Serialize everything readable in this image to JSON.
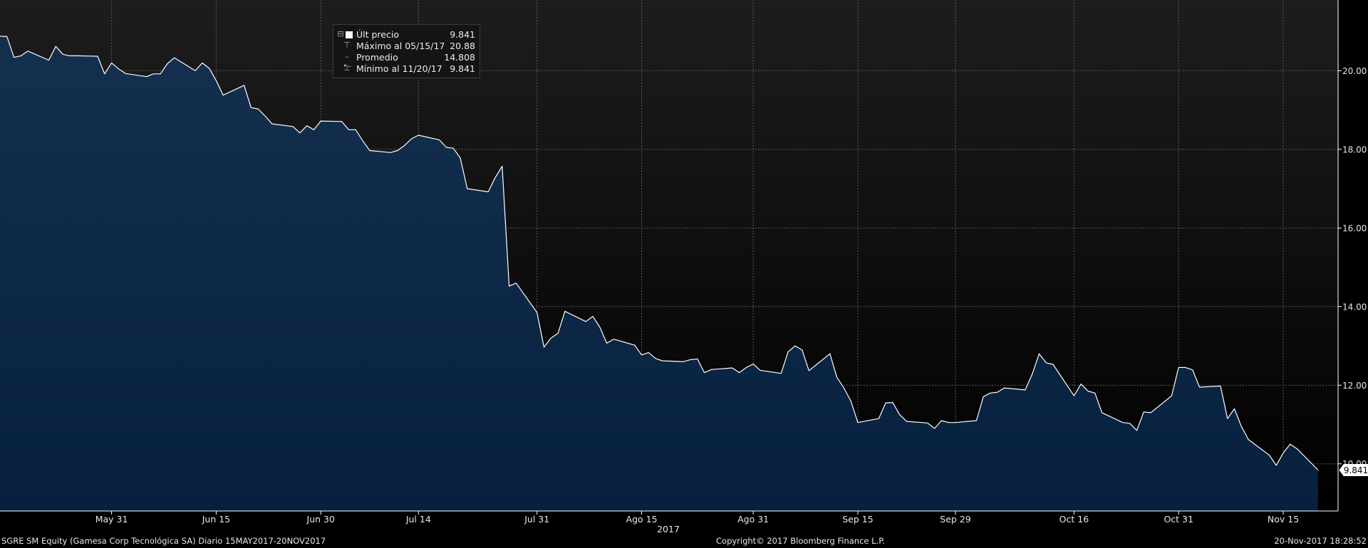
{
  "chart_data": {
    "type": "area",
    "title": "",
    "xlabel": "2017",
    "ylabel": "",
    "ylim": [
      8.8,
      21.8
    ],
    "grid": true,
    "legend_placement": "top-left",
    "y_ticks": [
      "10.00",
      "12.00",
      "14.00",
      "16.00",
      "18.00",
      "20.00"
    ],
    "x_ticks": [
      {
        "label": "May 31",
        "date": "2017-05-31"
      },
      {
        "label": "Jun 15",
        "date": "2017-06-15"
      },
      {
        "label": "Jun 30",
        "date": "2017-06-30"
      },
      {
        "label": "Jul 14",
        "date": "2017-07-14"
      },
      {
        "label": "Jul 31",
        "date": "2017-07-31"
      },
      {
        "label": "Ago 15",
        "date": "2017-08-15"
      },
      {
        "label": "Ago 31",
        "date": "2017-08-31"
      },
      {
        "label": "Sep 15",
        "date": "2017-09-15"
      },
      {
        "label": "Sep 29",
        "date": "2017-09-29"
      },
      {
        "label": "Oct 16",
        "date": "2017-10-16"
      },
      {
        "label": "Oct 31",
        "date": "2017-10-31"
      },
      {
        "label": "Nov 15",
        "date": "2017-11-15"
      }
    ],
    "x_range": [
      "2017-05-15",
      "2017-11-20"
    ],
    "series": [
      {
        "name": "Últ precio",
        "color": "#ffffff",
        "fill_top": "#15304f",
        "fill_bottom": "#06203e",
        "points": [
          [
            "2017-05-15",
            20.88
          ],
          [
            "2017-05-16",
            20.87
          ],
          [
            "2017-05-17",
            20.34
          ],
          [
            "2017-05-18",
            20.38
          ],
          [
            "2017-05-19",
            20.5
          ],
          [
            "2017-05-22",
            20.27
          ],
          [
            "2017-05-23",
            20.62
          ],
          [
            "2017-05-24",
            20.42
          ],
          [
            "2017-05-25",
            20.38
          ],
          [
            "2017-05-26",
            20.38
          ],
          [
            "2017-05-29",
            20.37
          ],
          [
            "2017-05-30",
            19.92
          ],
          [
            "2017-05-31",
            20.2
          ],
          [
            "2017-06-01",
            20.05
          ],
          [
            "2017-06-02",
            19.93
          ],
          [
            "2017-06-05",
            19.85
          ],
          [
            "2017-06-06",
            19.92
          ],
          [
            "2017-06-07",
            19.92
          ],
          [
            "2017-06-08",
            20.18
          ],
          [
            "2017-06-09",
            20.33
          ],
          [
            "2017-06-12",
            20.0
          ],
          [
            "2017-06-13",
            20.2
          ],
          [
            "2017-06-14",
            20.06
          ],
          [
            "2017-06-15",
            19.75
          ],
          [
            "2017-06-16",
            19.38
          ],
          [
            "2017-06-19",
            19.63
          ],
          [
            "2017-06-20",
            19.06
          ],
          [
            "2017-06-21",
            19.03
          ],
          [
            "2017-06-22",
            18.85
          ],
          [
            "2017-06-23",
            18.65
          ],
          [
            "2017-06-26",
            18.58
          ],
          [
            "2017-06-27",
            18.42
          ],
          [
            "2017-06-28",
            18.6
          ],
          [
            "2017-06-29",
            18.5
          ],
          [
            "2017-06-30",
            18.72
          ],
          [
            "2017-07-03",
            18.71
          ],
          [
            "2017-07-04",
            18.5
          ],
          [
            "2017-07-05",
            18.5
          ],
          [
            "2017-07-06",
            18.22
          ],
          [
            "2017-07-07",
            17.97
          ],
          [
            "2017-07-10",
            17.92
          ],
          [
            "2017-07-11",
            17.97
          ],
          [
            "2017-07-12",
            18.1
          ],
          [
            "2017-07-13",
            18.27
          ],
          [
            "2017-07-14",
            18.36
          ],
          [
            "2017-07-17",
            18.24
          ],
          [
            "2017-07-18",
            18.05
          ],
          [
            "2017-07-19",
            18.03
          ],
          [
            "2017-07-20",
            17.78
          ],
          [
            "2017-07-21",
            17.0
          ],
          [
            "2017-07-24",
            16.92
          ],
          [
            "2017-07-25",
            17.28
          ],
          [
            "2017-07-26",
            17.57
          ],
          [
            "2017-07-27",
            14.52
          ],
          [
            "2017-07-28",
            14.6
          ],
          [
            "2017-07-31",
            13.85
          ],
          [
            "2017-08-01",
            12.97
          ],
          [
            "2017-08-02",
            13.2
          ],
          [
            "2017-08-03",
            13.32
          ],
          [
            "2017-08-04",
            13.88
          ],
          [
            "2017-08-07",
            13.62
          ],
          [
            "2017-08-08",
            13.75
          ],
          [
            "2017-08-09",
            13.48
          ],
          [
            "2017-08-10",
            13.07
          ],
          [
            "2017-08-11",
            13.17
          ],
          [
            "2017-08-14",
            13.02
          ],
          [
            "2017-08-15",
            12.77
          ],
          [
            "2017-08-16",
            12.83
          ],
          [
            "2017-08-17",
            12.68
          ],
          [
            "2017-08-18",
            12.62
          ],
          [
            "2017-08-21",
            12.6
          ],
          [
            "2017-08-22",
            12.65
          ],
          [
            "2017-08-23",
            12.67
          ],
          [
            "2017-08-24",
            12.32
          ],
          [
            "2017-08-25",
            12.4
          ],
          [
            "2017-08-28",
            12.44
          ],
          [
            "2017-08-29",
            12.32
          ],
          [
            "2017-08-30",
            12.45
          ],
          [
            "2017-08-31",
            12.54
          ],
          [
            "2017-09-01",
            12.38
          ],
          [
            "2017-09-04",
            12.3
          ],
          [
            "2017-09-05",
            12.85
          ],
          [
            "2017-09-06",
            13.0
          ],
          [
            "2017-09-07",
            12.9
          ],
          [
            "2017-09-08",
            12.37
          ],
          [
            "2017-09-11",
            12.8
          ],
          [
            "2017-09-12",
            12.2
          ],
          [
            "2017-09-13",
            11.93
          ],
          [
            "2017-09-14",
            11.6
          ],
          [
            "2017-09-15",
            11.05
          ],
          [
            "2017-09-18",
            11.15
          ],
          [
            "2017-09-19",
            11.55
          ],
          [
            "2017-09-20",
            11.56
          ],
          [
            "2017-09-21",
            11.25
          ],
          [
            "2017-09-22",
            11.08
          ],
          [
            "2017-09-25",
            11.04
          ],
          [
            "2017-09-26",
            10.9
          ],
          [
            "2017-09-27",
            11.1
          ],
          [
            "2017-09-28",
            11.05
          ],
          [
            "2017-09-29",
            11.05
          ],
          [
            "2017-10-02",
            11.1
          ],
          [
            "2017-10-03",
            11.71
          ],
          [
            "2017-10-04",
            11.8
          ],
          [
            "2017-10-05",
            11.82
          ],
          [
            "2017-10-06",
            11.93
          ],
          [
            "2017-10-09",
            11.88
          ],
          [
            "2017-10-10",
            12.28
          ],
          [
            "2017-10-11",
            12.8
          ],
          [
            "2017-10-12",
            12.57
          ],
          [
            "2017-10-13",
            12.53
          ],
          [
            "2017-10-16",
            11.73
          ],
          [
            "2017-10-17",
            12.03
          ],
          [
            "2017-10-18",
            11.85
          ],
          [
            "2017-10-19",
            11.8
          ],
          [
            "2017-10-20",
            11.3
          ],
          [
            "2017-10-23",
            11.05
          ],
          [
            "2017-10-24",
            11.03
          ],
          [
            "2017-10-25",
            10.85
          ],
          [
            "2017-10-26",
            11.32
          ],
          [
            "2017-10-27",
            11.3
          ],
          [
            "2017-10-30",
            11.73
          ],
          [
            "2017-10-31",
            12.45
          ],
          [
            "2017-11-01",
            12.45
          ],
          [
            "2017-11-02",
            12.39
          ],
          [
            "2017-11-03",
            11.95
          ],
          [
            "2017-11-06",
            11.98
          ],
          [
            "2017-11-07",
            11.15
          ],
          [
            "2017-11-08",
            11.4
          ],
          [
            "2017-11-09",
            10.95
          ],
          [
            "2017-11-10",
            10.62
          ],
          [
            "2017-11-13",
            10.22
          ],
          [
            "2017-11-14",
            9.96
          ],
          [
            "2017-11-15",
            10.28
          ],
          [
            "2017-11-16",
            10.5
          ],
          [
            "2017-11-17",
            10.38
          ],
          [
            "2017-11-20",
            9.841
          ]
        ]
      }
    ],
    "last_value_tag": "9.841"
  },
  "legend": {
    "rows": [
      {
        "label": "Últ precio",
        "value": "9.841"
      },
      {
        "label": "Máximo al 05/15/17",
        "value": "20.88"
      },
      {
        "label": "Promedio",
        "value": "14.808"
      },
      {
        "label": "Mínimo al 11/20/17",
        "value": "9.841"
      }
    ]
  },
  "footer": {
    "left": "SGRE SM Equity (Gamesa Corp Tecnológica SA)  Diario 15MAY2017-20NOV2017",
    "center": "Copyright© 2017 Bloomberg Finance L.P.",
    "right": "20-Nov-2017 18:28:52"
  },
  "colors": {
    "background_top": "#1d1d1d",
    "background_bottom": "#000000",
    "grid": "#5a5a5a",
    "line": "#ffffff"
  }
}
